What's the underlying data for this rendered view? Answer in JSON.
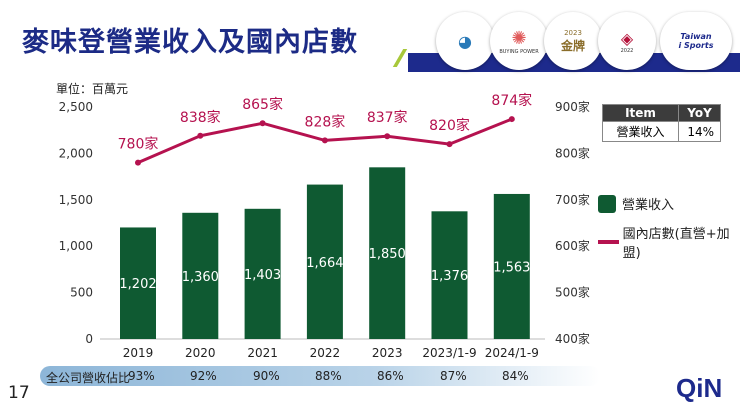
{
  "header": {
    "title": "麥味登營業收入及國內店數",
    "logos": [
      "連鎖加盟",
      "BUYING POWER",
      "2023 金牌",
      "國家品牌玉山獎 2022",
      "Taiwan i Sports 運動企業"
    ]
  },
  "chart_data": {
    "type": "bar+line",
    "unit_label": "單位：百萬元",
    "categories": [
      "2019",
      "2020",
      "2021",
      "2022",
      "2023",
      "2023/1-9",
      "2024/1-9"
    ],
    "series": [
      {
        "name": "營業收入",
        "type": "bar",
        "axis": "left",
        "color": "#0f5a32",
        "values": [
          1202,
          1360,
          1403,
          1664,
          1850,
          1376,
          1563
        ],
        "labels": [
          "1,202",
          "1,360",
          "1,403",
          "1,664",
          "1,850",
          "1,376",
          "1,563"
        ]
      },
      {
        "name": "國內店數(直營+加盟)",
        "type": "line",
        "axis": "right",
        "color": "#b5124f",
        "values": [
          780,
          838,
          865,
          828,
          837,
          820,
          874
        ],
        "labels": [
          "780家",
          "838家",
          "865家",
          "828家",
          "837家",
          "820家",
          "874家"
        ]
      }
    ],
    "left_axis": {
      "range": [
        0,
        2500
      ],
      "ticks": [
        "0",
        "500",
        "1,000",
        "1,500",
        "2,000",
        "2,500"
      ]
    },
    "right_axis": {
      "range": [
        400,
        900
      ],
      "ticks": [
        "400家",
        "500家",
        "600家",
        "700家",
        "800家",
        "900家"
      ]
    },
    "legend_placement": "right",
    "grid": false
  },
  "yoy_table": {
    "headers": [
      "Item",
      "YoY"
    ],
    "row": [
      "營業收入",
      "14%"
    ]
  },
  "share_row": {
    "label": "全公司營收佔比",
    "values": [
      "93%",
      "92%",
      "90%",
      "88%",
      "86%",
      "87%",
      "84%"
    ]
  },
  "page_number": "17",
  "brand": "QiN"
}
